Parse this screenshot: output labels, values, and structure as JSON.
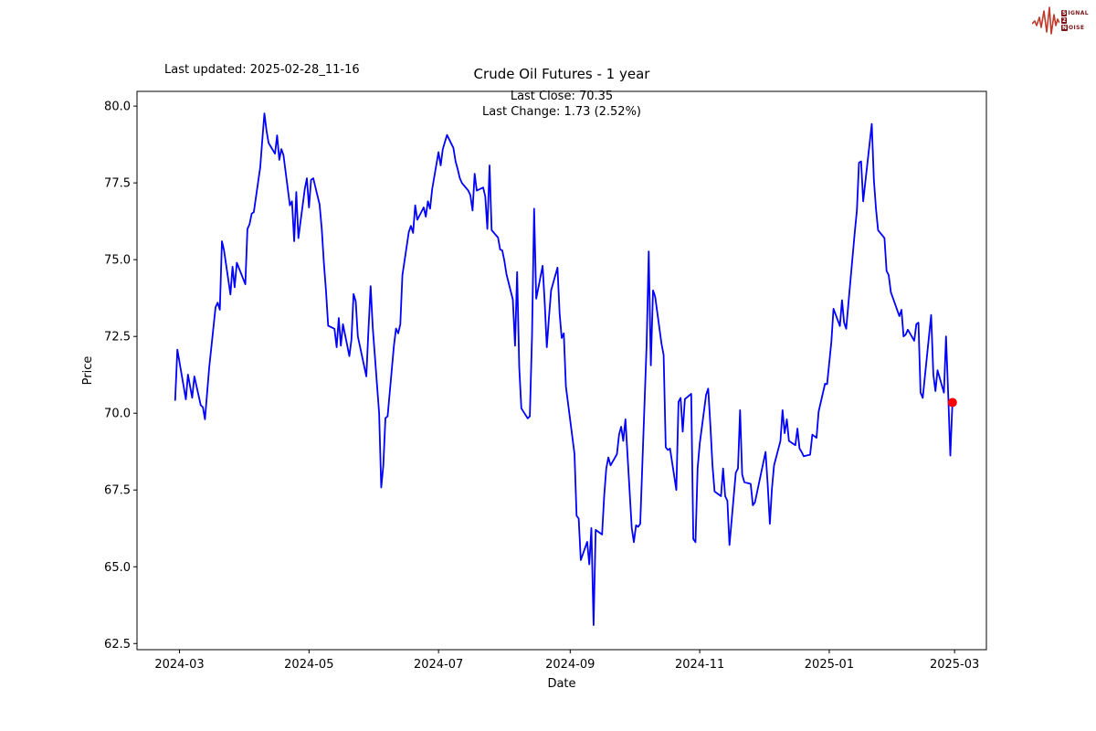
{
  "header": {
    "last_updated": "Last updated: 2025-02-28_11-16",
    "logo": {
      "line1_boxed": "S",
      "line1_rest": "IGNAL",
      "line2_boxed": "2",
      "line2_rest": "",
      "line3_boxed": "N",
      "line3_rest": "OISE",
      "waveform_color": "#c0392b",
      "box_color": "#7a1416"
    }
  },
  "chart_data": {
    "type": "line",
    "title": "Crude Oil Futures - 1 year",
    "xlabel": "Date",
    "ylabel": "Price",
    "annotation_line1": "Last Close: 70.35",
    "annotation_line2": "Last Change: 1.73 (2.52%)",
    "last_close": 70.35,
    "last_change": 1.73,
    "last_change_pct": 2.52,
    "grid": false,
    "legend": "none",
    "line_color": "#0000ff",
    "marker_color": "#ff0000",
    "frame_color": "#000000",
    "ylim": [
      62.3,
      80.48
    ],
    "xlim": [
      "2024-02-10",
      "2025-03-16"
    ],
    "y_ticks": [
      62.5,
      65.0,
      67.5,
      70.0,
      72.5,
      75.0,
      77.5,
      80.0
    ],
    "x_ticks": [
      {
        "date": "2024-03-01",
        "label": "2024-03"
      },
      {
        "date": "2024-05-01",
        "label": "2024-05"
      },
      {
        "date": "2024-07-01",
        "label": "2024-07"
      },
      {
        "date": "2024-09-01",
        "label": "2024-09"
      },
      {
        "date": "2024-11-01",
        "label": "2024-11"
      },
      {
        "date": "2025-01-01",
        "label": "2025-01"
      },
      {
        "date": "2025-03-01",
        "label": "2025-03"
      }
    ],
    "series": [
      {
        "name": "Crude Oil Futures price",
        "color": "#0000ff",
        "points": [
          [
            "2024-02-28",
            70.43
          ],
          [
            "2024-02-29",
            72.07
          ],
          [
            "2024-03-04",
            70.45
          ],
          [
            "2024-03-05",
            71.26
          ],
          [
            "2024-03-07",
            70.5
          ],
          [
            "2024-03-08",
            71.2
          ],
          [
            "2024-03-11",
            70.26
          ],
          [
            "2024-03-12",
            70.2
          ],
          [
            "2024-03-13",
            69.8
          ],
          [
            "2024-03-15",
            71.5
          ],
          [
            "2024-03-18",
            73.45
          ],
          [
            "2024-03-19",
            73.6
          ],
          [
            "2024-03-20",
            73.37
          ],
          [
            "2024-03-21",
            75.6
          ],
          [
            "2024-03-22",
            75.3
          ],
          [
            "2024-03-25",
            73.87
          ],
          [
            "2024-03-26",
            74.77
          ],
          [
            "2024-03-27",
            74.1
          ],
          [
            "2024-03-28",
            74.9
          ],
          [
            "2024-04-01",
            74.2
          ],
          [
            "2024-04-02",
            76.0
          ],
          [
            "2024-04-03",
            76.15
          ],
          [
            "2024-04-04",
            76.5
          ],
          [
            "2024-04-05",
            76.55
          ],
          [
            "2024-04-08",
            78.0
          ],
          [
            "2024-04-09",
            78.9
          ],
          [
            "2024-04-10",
            79.76
          ],
          [
            "2024-04-11",
            79.2
          ],
          [
            "2024-04-12",
            78.8
          ],
          [
            "2024-04-15",
            78.45
          ],
          [
            "2024-04-16",
            79.05
          ],
          [
            "2024-04-17",
            78.25
          ],
          [
            "2024-04-18",
            78.6
          ],
          [
            "2024-04-19",
            78.4
          ],
          [
            "2024-04-22",
            76.77
          ],
          [
            "2024-04-23",
            76.9
          ],
          [
            "2024-04-24",
            75.6
          ],
          [
            "2024-04-25",
            77.2
          ],
          [
            "2024-04-26",
            75.7
          ],
          [
            "2024-04-29",
            77.3
          ],
          [
            "2024-04-30",
            77.65
          ],
          [
            "2024-05-01",
            76.7
          ],
          [
            "2024-05-02",
            77.6
          ],
          [
            "2024-05-03",
            77.65
          ],
          [
            "2024-05-06",
            76.8
          ],
          [
            "2024-05-07",
            76.0
          ],
          [
            "2024-05-08",
            74.9
          ],
          [
            "2024-05-09",
            74.0
          ],
          [
            "2024-05-10",
            72.85
          ],
          [
            "2024-05-13",
            72.75
          ],
          [
            "2024-05-14",
            72.15
          ],
          [
            "2024-05-15",
            73.1
          ],
          [
            "2024-05-16",
            72.2
          ],
          [
            "2024-05-17",
            72.9
          ],
          [
            "2024-05-20",
            71.86
          ],
          [
            "2024-05-21",
            72.4
          ],
          [
            "2024-05-22",
            73.88
          ],
          [
            "2024-05-23",
            73.64
          ],
          [
            "2024-05-24",
            72.5
          ],
          [
            "2024-05-28",
            71.2
          ],
          [
            "2024-05-29",
            72.7
          ],
          [
            "2024-05-30",
            74.14
          ],
          [
            "2024-05-31",
            72.8
          ],
          [
            "2024-06-03",
            70.0
          ],
          [
            "2024-06-04",
            67.58
          ],
          [
            "2024-06-05",
            68.3
          ],
          [
            "2024-06-06",
            69.84
          ],
          [
            "2024-06-07",
            69.9
          ],
          [
            "2024-06-10",
            72.2
          ],
          [
            "2024-06-11",
            72.76
          ],
          [
            "2024-06-12",
            72.6
          ],
          [
            "2024-06-13",
            72.9
          ],
          [
            "2024-06-14",
            74.5
          ],
          [
            "2024-06-17",
            75.9
          ],
          [
            "2024-06-18",
            76.1
          ],
          [
            "2024-06-19",
            75.87
          ],
          [
            "2024-06-20",
            76.77
          ],
          [
            "2024-06-21",
            76.3
          ],
          [
            "2024-06-24",
            76.7
          ],
          [
            "2024-06-25",
            76.4
          ],
          [
            "2024-06-26",
            76.9
          ],
          [
            "2024-06-27",
            76.66
          ],
          [
            "2024-06-28",
            77.3
          ],
          [
            "2024-07-01",
            78.5
          ],
          [
            "2024-07-02",
            78.07
          ],
          [
            "2024-07-03",
            78.6
          ],
          [
            "2024-07-05",
            79.06
          ],
          [
            "2024-07-08",
            78.64
          ],
          [
            "2024-07-09",
            78.2
          ],
          [
            "2024-07-10",
            77.95
          ],
          [
            "2024-07-11",
            77.66
          ],
          [
            "2024-07-12",
            77.5
          ],
          [
            "2024-07-15",
            77.25
          ],
          [
            "2024-07-16",
            77.1
          ],
          [
            "2024-07-17",
            76.6
          ],
          [
            "2024-07-18",
            77.8
          ],
          [
            "2024-07-19",
            77.25
          ],
          [
            "2024-07-22",
            77.35
          ],
          [
            "2024-07-23",
            77.06
          ],
          [
            "2024-07-24",
            76.0
          ],
          [
            "2024-07-25",
            78.07
          ],
          [
            "2024-07-26",
            75.96
          ],
          [
            "2024-07-29",
            75.72
          ],
          [
            "2024-07-30",
            75.33
          ],
          [
            "2024-07-31",
            75.3
          ],
          [
            "2024-08-01",
            74.97
          ],
          [
            "2024-08-02",
            74.53
          ],
          [
            "2024-08-05",
            73.7
          ],
          [
            "2024-08-06",
            72.2
          ],
          [
            "2024-08-07",
            74.6
          ],
          [
            "2024-08-08",
            71.5
          ],
          [
            "2024-08-09",
            70.16
          ],
          [
            "2024-08-12",
            69.83
          ],
          [
            "2024-08-13",
            69.9
          ],
          [
            "2024-08-14",
            72.5
          ],
          [
            "2024-08-15",
            76.66
          ],
          [
            "2024-08-16",
            73.73
          ],
          [
            "2024-08-19",
            74.8
          ],
          [
            "2024-08-20",
            73.6
          ],
          [
            "2024-08-21",
            72.15
          ],
          [
            "2024-08-22",
            73.1
          ],
          [
            "2024-08-23",
            74.0
          ],
          [
            "2024-08-26",
            74.74
          ],
          [
            "2024-08-27",
            73.25
          ],
          [
            "2024-08-28",
            72.45
          ],
          [
            "2024-08-29",
            72.6
          ],
          [
            "2024-08-30",
            70.87
          ],
          [
            "2024-09-03",
            68.68
          ],
          [
            "2024-09-04",
            66.66
          ],
          [
            "2024-09-05",
            66.57
          ],
          [
            "2024-09-06",
            65.22
          ],
          [
            "2024-09-09",
            65.81
          ],
          [
            "2024-09-10",
            65.08
          ],
          [
            "2024-09-11",
            66.26
          ],
          [
            "2024-09-12",
            63.1
          ],
          [
            "2024-09-13",
            66.2
          ],
          [
            "2024-09-16",
            66.05
          ],
          [
            "2024-09-17",
            67.3
          ],
          [
            "2024-09-18",
            68.2
          ],
          [
            "2024-09-19",
            68.56
          ],
          [
            "2024-09-20",
            68.3
          ],
          [
            "2024-09-23",
            68.67
          ],
          [
            "2024-09-24",
            69.3
          ],
          [
            "2024-09-25",
            69.56
          ],
          [
            "2024-09-26",
            69.1
          ],
          [
            "2024-09-27",
            69.8
          ],
          [
            "2024-09-30",
            66.26
          ],
          [
            "2024-10-01",
            65.8
          ],
          [
            "2024-10-02",
            66.35
          ],
          [
            "2024-10-03",
            66.3
          ],
          [
            "2024-10-04",
            66.4
          ],
          [
            "2024-10-07",
            72.25
          ],
          [
            "2024-10-08",
            75.27
          ],
          [
            "2024-10-09",
            71.56
          ],
          [
            "2024-10-10",
            74.0
          ],
          [
            "2024-10-11",
            73.8
          ],
          [
            "2024-10-14",
            72.26
          ],
          [
            "2024-10-15",
            71.9
          ],
          [
            "2024-10-16",
            68.89
          ],
          [
            "2024-10-17",
            68.8
          ],
          [
            "2024-10-18",
            68.85
          ],
          [
            "2024-10-21",
            67.5
          ],
          [
            "2024-10-22",
            70.37
          ],
          [
            "2024-10-23",
            70.5
          ],
          [
            "2024-10-24",
            69.4
          ],
          [
            "2024-10-25",
            70.46
          ],
          [
            "2024-10-28",
            70.63
          ],
          [
            "2024-10-29",
            65.9
          ],
          [
            "2024-10-30",
            65.8
          ],
          [
            "2024-10-31",
            68.2
          ],
          [
            "2024-11-01",
            69.0
          ],
          [
            "2024-11-04",
            70.6
          ],
          [
            "2024-11-05",
            70.8
          ],
          [
            "2024-11-06",
            69.6
          ],
          [
            "2024-11-07",
            68.3
          ],
          [
            "2024-11-08",
            67.45
          ],
          [
            "2024-11-11",
            67.3
          ],
          [
            "2024-11-12",
            68.2
          ],
          [
            "2024-11-13",
            67.3
          ],
          [
            "2024-11-14",
            67.15
          ],
          [
            "2024-11-15",
            65.71
          ],
          [
            "2024-11-18",
            68.06
          ],
          [
            "2024-11-19",
            68.2
          ],
          [
            "2024-11-20",
            70.1
          ],
          [
            "2024-11-21",
            68.0
          ],
          [
            "2024-11-22",
            67.75
          ],
          [
            "2024-11-25",
            67.7
          ],
          [
            "2024-11-26",
            67.0
          ],
          [
            "2024-11-27",
            67.1
          ],
          [
            "2024-12-02",
            68.74
          ],
          [
            "2024-12-03",
            67.7
          ],
          [
            "2024-12-04",
            66.4
          ],
          [
            "2024-12-05",
            67.55
          ],
          [
            "2024-12-06",
            68.3
          ],
          [
            "2024-12-09",
            69.1
          ],
          [
            "2024-12-10",
            70.1
          ],
          [
            "2024-12-11",
            69.35
          ],
          [
            "2024-12-12",
            69.8
          ],
          [
            "2024-12-13",
            69.1
          ],
          [
            "2024-12-16",
            68.96
          ],
          [
            "2024-12-17",
            69.5
          ],
          [
            "2024-12-18",
            68.85
          ],
          [
            "2024-12-19",
            68.74
          ],
          [
            "2024-12-20",
            68.6
          ],
          [
            "2024-12-23",
            68.65
          ],
          [
            "2024-12-24",
            69.3
          ],
          [
            "2024-12-26",
            69.2
          ],
          [
            "2024-12-27",
            70.05
          ],
          [
            "2024-12-30",
            70.96
          ],
          [
            "2024-12-31",
            70.95
          ],
          [
            "2025-01-02",
            72.34
          ],
          [
            "2025-01-03",
            73.4
          ],
          [
            "2025-01-06",
            72.84
          ],
          [
            "2025-01-07",
            73.68
          ],
          [
            "2025-01-08",
            72.95
          ],
          [
            "2025-01-09",
            72.75
          ],
          [
            "2025-01-10",
            73.57
          ],
          [
            "2025-01-13",
            75.9
          ],
          [
            "2025-01-14",
            76.6
          ],
          [
            "2025-01-15",
            78.16
          ],
          [
            "2025-01-16",
            78.2
          ],
          [
            "2025-01-17",
            76.9
          ],
          [
            "2025-01-21",
            79.42
          ],
          [
            "2025-01-22",
            77.6
          ],
          [
            "2025-01-23",
            76.66
          ],
          [
            "2025-01-24",
            75.96
          ],
          [
            "2025-01-27",
            75.7
          ],
          [
            "2025-01-28",
            74.63
          ],
          [
            "2025-01-29",
            74.5
          ],
          [
            "2025-01-30",
            73.94
          ],
          [
            "2025-01-31",
            73.75
          ],
          [
            "2025-02-03",
            73.16
          ],
          [
            "2025-02-04",
            73.37
          ],
          [
            "2025-02-05",
            72.5
          ],
          [
            "2025-02-06",
            72.56
          ],
          [
            "2025-02-07",
            72.72
          ],
          [
            "2025-02-10",
            72.36
          ],
          [
            "2025-02-11",
            72.9
          ],
          [
            "2025-02-12",
            72.95
          ],
          [
            "2025-02-13",
            70.67
          ],
          [
            "2025-02-14",
            70.5
          ],
          [
            "2025-02-18",
            73.2
          ],
          [
            "2025-02-19",
            71.26
          ],
          [
            "2025-02-20",
            70.72
          ],
          [
            "2025-02-21",
            71.4
          ],
          [
            "2025-02-24",
            70.67
          ],
          [
            "2025-02-25",
            72.5
          ],
          [
            "2025-02-26",
            70.6
          ],
          [
            "2025-02-27",
            68.62
          ],
          [
            "2025-02-28",
            70.35
          ]
        ]
      }
    ],
    "last_point": {
      "date": "2025-02-28",
      "value": 70.35
    }
  }
}
